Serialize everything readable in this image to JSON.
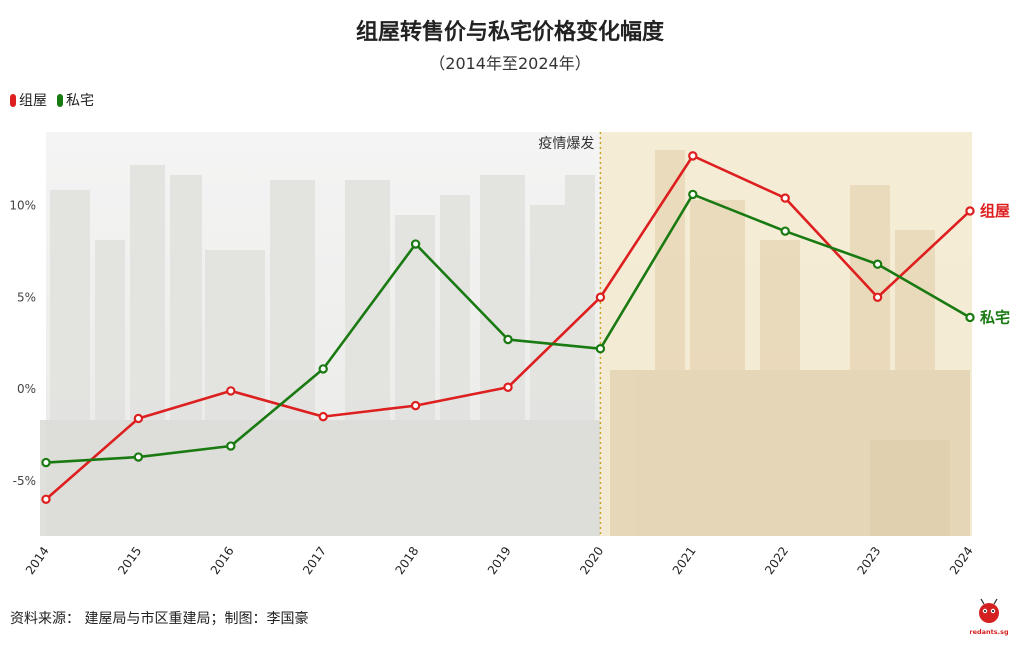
{
  "chart_data": {
    "type": "line",
    "title": "组屋转售价与私宅价格变化幅度",
    "subtitle": "（2014年至2024年）",
    "x": [
      "2014",
      "2015",
      "2016",
      "2017",
      "2018",
      "2019",
      "2020",
      "2021",
      "2022",
      "2023",
      "2024"
    ],
    "series": [
      {
        "name": "组屋",
        "color": "#dd1f1f",
        "values": [
          -6.0,
          -1.6,
          -0.1,
          -1.5,
          -0.9,
          0.1,
          5.0,
          12.7,
          10.4,
          5.0,
          9.7
        ]
      },
      {
        "name": "私宅",
        "color": "#1a7a12",
        "values": [
          -4.0,
          -3.7,
          -3.1,
          1.1,
          7.9,
          2.7,
          2.2,
          10.6,
          8.6,
          6.8,
          3.9
        ]
      }
    ],
    "y_ticks": [
      -5,
      0,
      5,
      10
    ],
    "y_tick_labels": [
      "-5%",
      "0%",
      "5%",
      "10%"
    ],
    "ylim": [
      -8,
      14
    ],
    "grid": false,
    "legend_position": "top-left",
    "annotation": {
      "label": "疫情爆发",
      "x": "2020"
    },
    "end_labels": [
      "组屋",
      "私宅"
    ]
  },
  "legend": [
    {
      "label": "组屋",
      "color": "#dd1f1f"
    },
    {
      "label": "私宅",
      "color": "#1a7a12"
    }
  ],
  "footer": {
    "source": "资料来源： 建屋局与市区重建局；制图：李国豪",
    "logo_text": "redants.sg"
  }
}
